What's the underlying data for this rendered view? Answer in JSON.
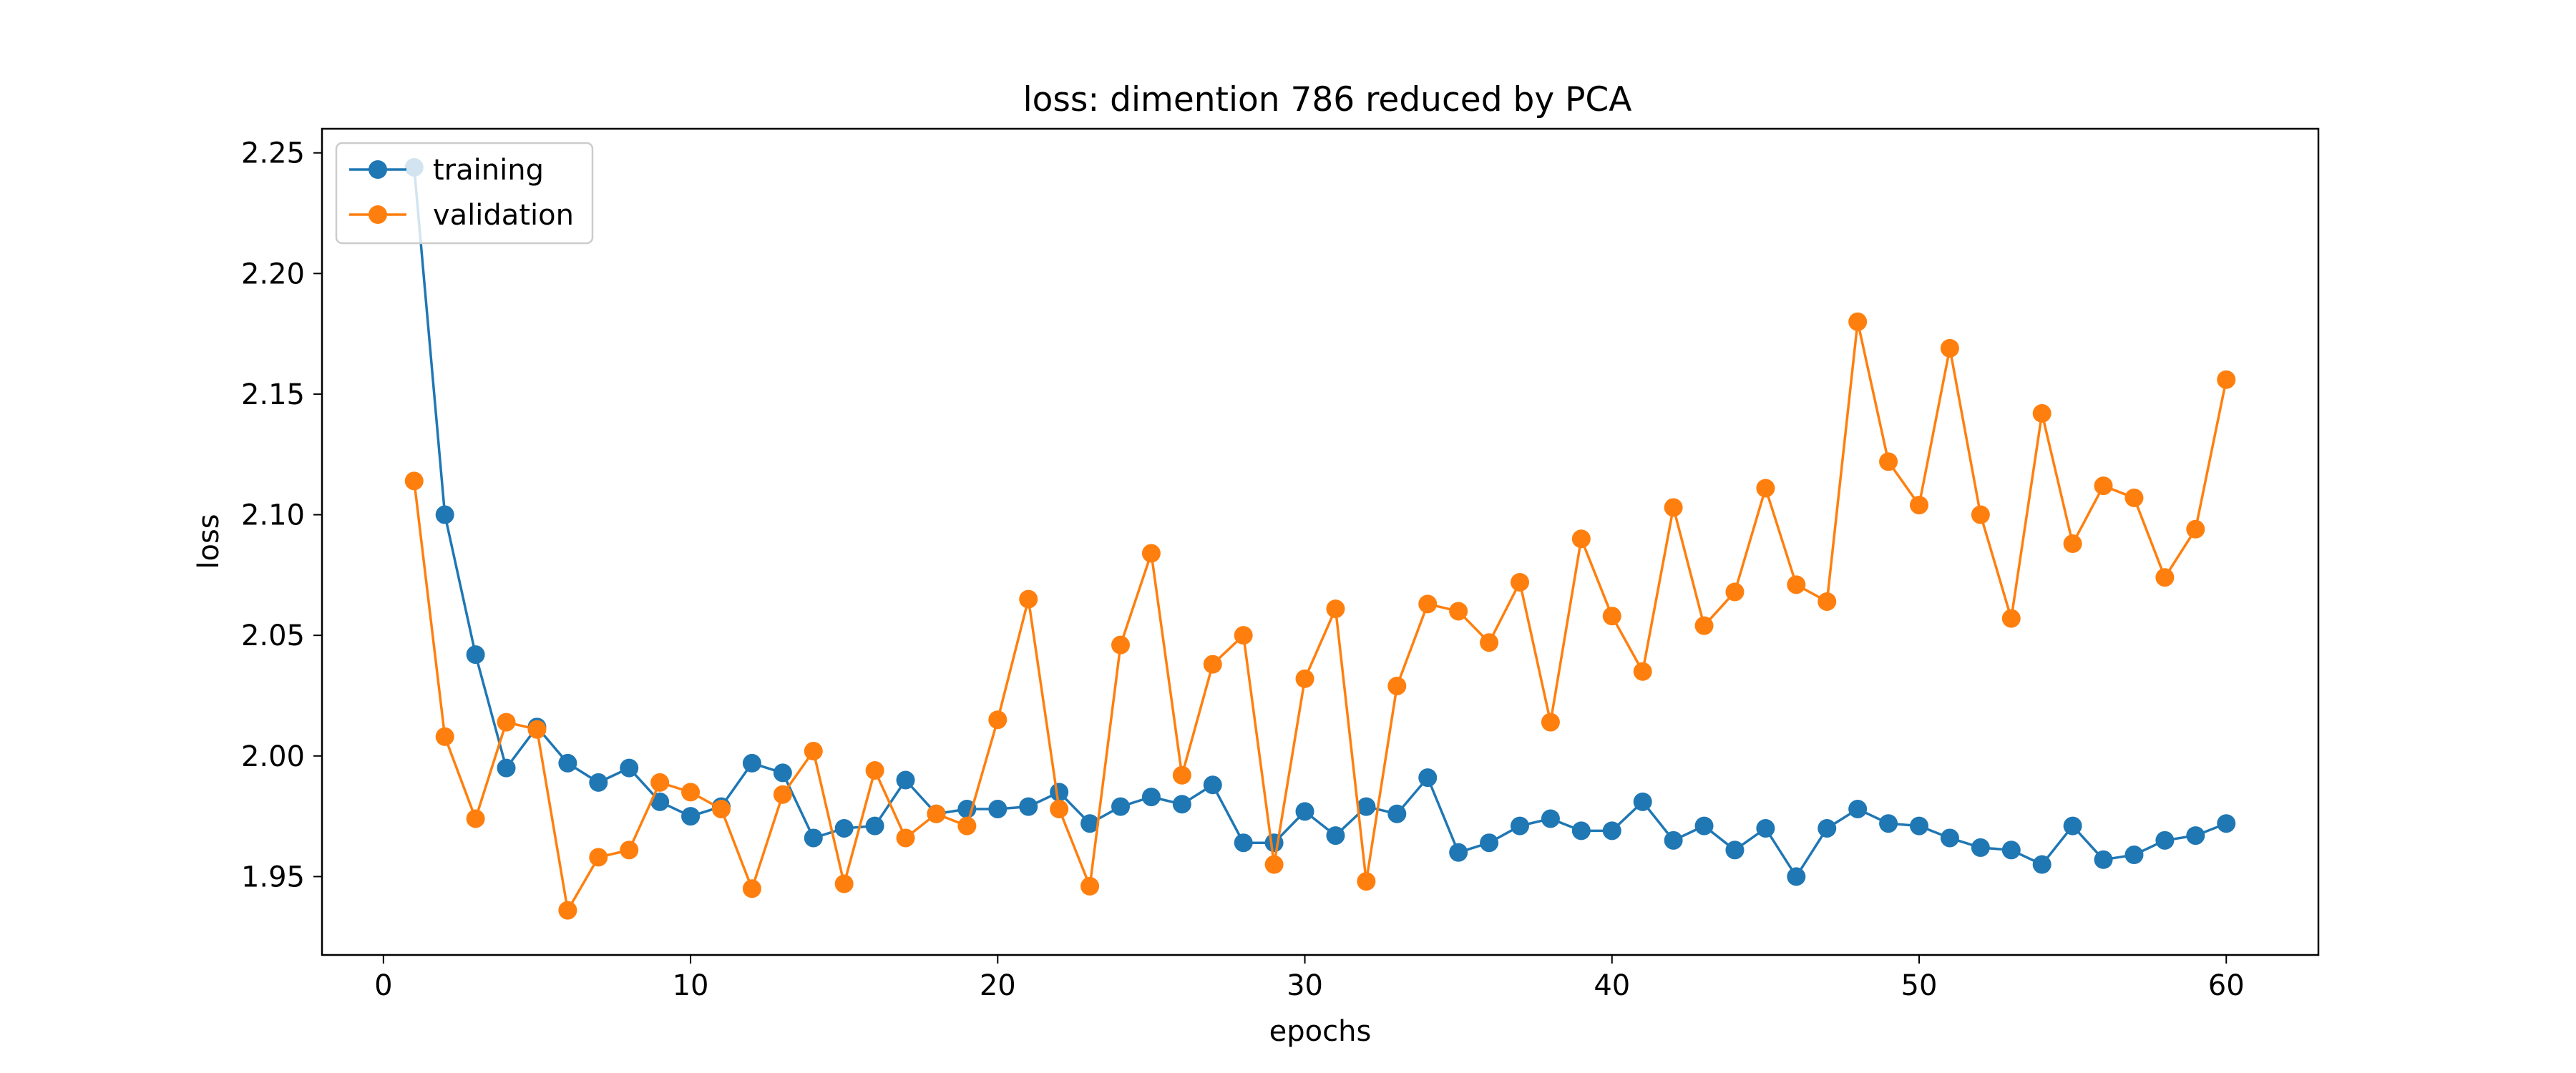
{
  "chart_data": {
    "type": "line",
    "title": "loss: dimention 786 reduced by PCA",
    "xlabel": "epochs",
    "ylabel": "loss",
    "xlim": [
      -2,
      63
    ],
    "ylim": [
      1.9175,
      2.26
    ],
    "xticks": [
      0,
      10,
      20,
      30,
      40,
      50,
      60
    ],
    "xtick_labels": [
      "0",
      "10",
      "20",
      "30",
      "40",
      "50",
      "60"
    ],
    "yticks": [
      1.95,
      2.0,
      2.05,
      2.1,
      2.15,
      2.2,
      2.25
    ],
    "ytick_labels": [
      "1.95",
      "2.00",
      "2.05",
      "2.10",
      "2.15",
      "2.20",
      "2.25"
    ],
    "grid": false,
    "legend_position": "upper-left",
    "markers": "circle",
    "x": [
      1,
      2,
      3,
      4,
      5,
      6,
      7,
      8,
      9,
      10,
      11,
      12,
      13,
      14,
      15,
      16,
      17,
      18,
      19,
      20,
      21,
      22,
      23,
      24,
      25,
      26,
      27,
      28,
      29,
      30,
      31,
      32,
      33,
      34,
      35,
      36,
      37,
      38,
      39,
      40,
      41,
      42,
      43,
      44,
      45,
      46,
      47,
      48,
      49,
      50,
      51,
      52,
      53,
      54,
      55,
      56,
      57,
      58,
      59,
      60
    ],
    "series": [
      {
        "name": "training",
        "color": "#1f77b4",
        "values": [
          2.244,
          2.1,
          2.042,
          1.995,
          2.012,
          1.997,
          1.989,
          1.995,
          1.981,
          1.975,
          1.979,
          1.997,
          1.993,
          1.966,
          1.97,
          1.971,
          1.99,
          1.976,
          1.978,
          1.978,
          1.979,
          1.985,
          1.972,
          1.979,
          1.983,
          1.98,
          1.988,
          1.964,
          1.964,
          1.977,
          1.967,
          1.979,
          1.976,
          1.991,
          1.96,
          1.964,
          1.971,
          1.974,
          1.969,
          1.969,
          1.981,
          1.965,
          1.971,
          1.961,
          1.97,
          1.95,
          1.97,
          1.978,
          1.972,
          1.971,
          1.966,
          1.962,
          1.961,
          1.955,
          1.971,
          1.957,
          1.959,
          1.965,
          1.967,
          1.972
        ]
      },
      {
        "name": "validation",
        "color": "#ff7f0e",
        "values": [
          2.114,
          2.008,
          1.974,
          2.014,
          2.011,
          1.936,
          1.958,
          1.961,
          1.989,
          1.985,
          1.978,
          1.945,
          1.984,
          2.002,
          1.947,
          1.994,
          1.966,
          1.976,
          1.971,
          2.015,
          2.065,
          1.978,
          1.946,
          2.046,
          2.084,
          1.992,
          2.038,
          2.05,
          1.955,
          2.032,
          2.061,
          1.948,
          2.029,
          2.063,
          2.06,
          2.047,
          2.072,
          2.014,
          2.09,
          2.058,
          2.035,
          2.103,
          2.054,
          2.068,
          2.111,
          2.071,
          2.064,
          2.18,
          2.122,
          2.104,
          2.169,
          2.1,
          2.057,
          2.142,
          2.088,
          2.112,
          2.107,
          2.074,
          2.094,
          2.156
        ]
      }
    ]
  }
}
